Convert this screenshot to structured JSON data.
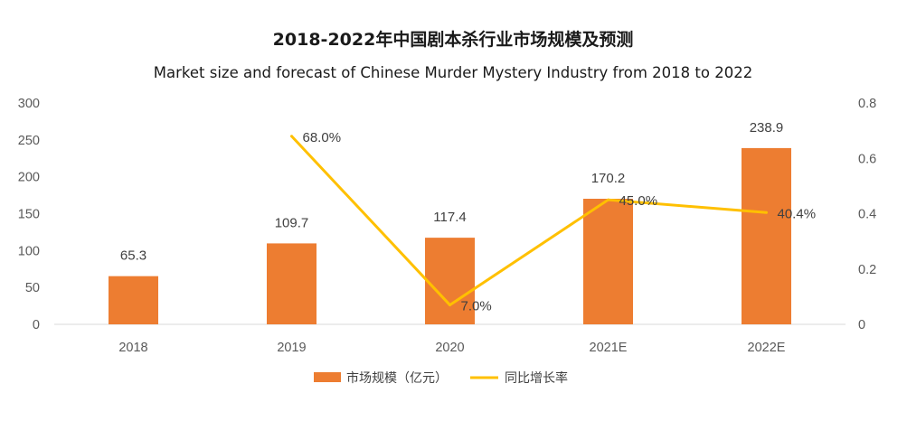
{
  "chart_data": {
    "type": "bar",
    "title": "2018-2022年中国剧本杀行业市场规模及预测",
    "subtitle": "Market size and forecast of Chinese Murder Mystery Industry from 2018 to 2022",
    "categories": [
      "2018",
      "2019",
      "2020",
      "2021E",
      "2022E"
    ],
    "series": [
      {
        "name": "市场规模（亿元）",
        "kind": "bar",
        "axis": "left",
        "color": "#ED7D31",
        "values": [
          65.3,
          109.7,
          117.4,
          170.2,
          238.9
        ],
        "labels": [
          "65.3",
          "109.7",
          "117.4",
          "170.2",
          "238.9"
        ]
      },
      {
        "name": "同比增长率",
        "kind": "line",
        "axis": "right",
        "color": "#FFC000",
        "values": [
          null,
          0.68,
          0.07,
          0.45,
          0.404
        ],
        "labels": [
          "",
          "68.0%",
          "7.0%",
          "45.0%",
          "40.4%"
        ]
      }
    ],
    "y_left": {
      "min": 0,
      "max": 300,
      "ticks": [
        "0",
        "50",
        "100",
        "150",
        "200",
        "250",
        "300"
      ]
    },
    "y_right": {
      "min": 0,
      "max": 0.8,
      "ticks": [
        "0",
        "0.2",
        "0.4",
        "0.6",
        "0.8"
      ]
    },
    "grid": false,
    "legend_position": "bottom"
  }
}
